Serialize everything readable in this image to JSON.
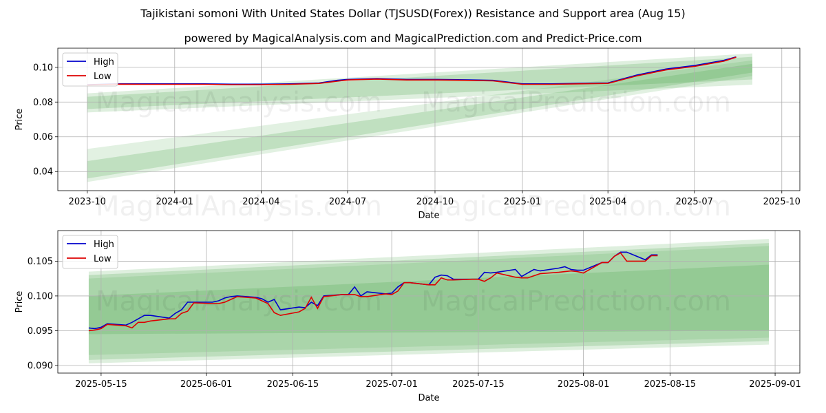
{
  "title": "Tajikistani somoni With United States Dollar (TJSUSD(Forex)) Resistance and Support area (Aug 15)",
  "subtitle": "powered by MagicalAnalysis.com and MagicalPrediction.com and Predict-Price.com",
  "watermarks": [
    "MagicalAnalysis.com",
    "MagicalPrediction.com"
  ],
  "colors": {
    "high": "#0000cc",
    "low": "#dd0000",
    "band": "#4aa64a",
    "grid": "#b0b0b0"
  },
  "chart_data": [
    {
      "type": "line",
      "xlabel": "Date",
      "ylabel": "Price",
      "x_ticks": [
        "2023-10",
        "2024-01",
        "2024-04",
        "2024-07",
        "2024-10",
        "2025-01",
        "2025-04",
        "2025-07",
        "2025-10"
      ],
      "y_ticks": [
        "0.04",
        "0.06",
        "0.08",
        "0.10"
      ],
      "xlim": [
        "2023-08-31",
        "2025-10-20"
      ],
      "ylim": [
        0.029,
        0.111
      ],
      "grid": true,
      "legend": "top-left",
      "legend_labels": [
        "High",
        "Low"
      ],
      "series": [
        {
          "name": "High",
          "x": [
            "2023-10-01",
            "2023-11-01",
            "2023-12-01",
            "2024-01-01",
            "2024-02-01",
            "2024-03-01",
            "2024-04-01",
            "2024-05-01",
            "2024-06-01",
            "2024-06-20",
            "2024-07-01",
            "2024-08-01",
            "2024-09-01",
            "2024-10-01",
            "2024-11-01",
            "2024-12-01",
            "2025-01-01",
            "2025-02-01",
            "2025-03-01",
            "2025-04-01",
            "2025-05-01",
            "2025-06-01",
            "2025-07-01",
            "2025-08-01",
            "2025-08-14"
          ],
          "y": [
            0.09,
            0.0905,
            0.0905,
            0.0905,
            0.0905,
            0.0903,
            0.0903,
            0.0905,
            0.091,
            0.0925,
            0.093,
            0.0935,
            0.093,
            0.093,
            0.0928,
            0.0925,
            0.0905,
            0.0905,
            0.0908,
            0.091,
            0.0955,
            0.099,
            0.101,
            0.104,
            0.106
          ]
        },
        {
          "name": "Low",
          "x": [
            "2023-10-01",
            "2023-11-01",
            "2023-12-01",
            "2024-01-01",
            "2024-02-01",
            "2024-03-01",
            "2024-04-01",
            "2024-05-01",
            "2024-06-01",
            "2024-06-20",
            "2024-07-01",
            "2024-08-01",
            "2024-09-01",
            "2024-10-01",
            "2024-11-01",
            "2024-12-01",
            "2025-01-01",
            "2025-02-01",
            "2025-03-01",
            "2025-04-01",
            "2025-05-01",
            "2025-06-01",
            "2025-07-01",
            "2025-08-01",
            "2025-08-14"
          ],
          "y": [
            0.0898,
            0.0903,
            0.0902,
            0.0902,
            0.0902,
            0.09,
            0.09,
            0.0902,
            0.0907,
            0.092,
            0.0927,
            0.0932,
            0.0927,
            0.0927,
            0.0925,
            0.0922,
            0.0902,
            0.0902,
            0.0905,
            0.0907,
            0.095,
            0.0985,
            0.1005,
            0.1035,
            0.1058
          ]
        }
      ],
      "bands": [
        {
          "x0": "2023-10-01",
          "x1": "2025-08-31",
          "lower": [
            0.074,
            0.09
          ],
          "upper": [
            0.085,
            0.108
          ]
        },
        {
          "x0": "2023-10-01",
          "x1": "2025-08-31",
          "lower": [
            0.076,
            0.093
          ],
          "upper": [
            0.083,
            0.106
          ]
        },
        {
          "x0": "2023-10-01",
          "x1": "2025-08-31",
          "lower": [
            0.034,
            0.095
          ],
          "upper": [
            0.053,
            0.104
          ]
        },
        {
          "x0": "2023-10-01",
          "x1": "2025-08-31",
          "lower": [
            0.036,
            0.097
          ],
          "upper": [
            0.046,
            0.102
          ]
        }
      ]
    },
    {
      "type": "line",
      "xlabel": "Date",
      "ylabel": "Price",
      "x_ticks": [
        "2025-05-15",
        "2025-06-01",
        "2025-06-15",
        "2025-07-01",
        "2025-07-15",
        "2025-08-01",
        "2025-08-15",
        "2025-09-01"
      ],
      "y_ticks": [
        "0.090",
        "0.095",
        "0.100",
        "0.105"
      ],
      "xlim": [
        "2025-05-08",
        "2025-09-05"
      ],
      "ylim": [
        0.0889,
        0.1094
      ],
      "grid": true,
      "legend": "top-left",
      "legend_labels": [
        "High",
        "Low"
      ],
      "series": [
        {
          "name": "High",
          "x": [
            "2025-05-13",
            "2025-05-14",
            "2025-05-15",
            "2025-05-16",
            "2025-05-19",
            "2025-05-20",
            "2025-05-21",
            "2025-05-22",
            "2025-05-23",
            "2025-05-26",
            "2025-05-27",
            "2025-05-28",
            "2025-05-29",
            "2025-05-30",
            "2025-06-02",
            "2025-06-03",
            "2025-06-04",
            "2025-06-05",
            "2025-06-06",
            "2025-06-09",
            "2025-06-10",
            "2025-06-11",
            "2025-06-12",
            "2025-06-13",
            "2025-06-16",
            "2025-06-17",
            "2025-06-18",
            "2025-06-19",
            "2025-06-20",
            "2025-06-23",
            "2025-06-24",
            "2025-06-25",
            "2025-06-26",
            "2025-06-27",
            "2025-06-30",
            "2025-07-01",
            "2025-07-02",
            "2025-07-03",
            "2025-07-04",
            "2025-07-07",
            "2025-07-08",
            "2025-07-09",
            "2025-07-10",
            "2025-07-11",
            "2025-07-14",
            "2025-07-15",
            "2025-07-16",
            "2025-07-17",
            "2025-07-18",
            "2025-07-21",
            "2025-07-22",
            "2025-07-23",
            "2025-07-24",
            "2025-07-25",
            "2025-07-28",
            "2025-07-29",
            "2025-07-30",
            "2025-07-31",
            "2025-08-01",
            "2025-08-04",
            "2025-08-05",
            "2025-08-06",
            "2025-08-07",
            "2025-08-08",
            "2025-08-11",
            "2025-08-12",
            "2025-08-13"
          ],
          "y": [
            0.0954,
            0.0953,
            0.0955,
            0.096,
            0.0958,
            0.0962,
            0.0967,
            0.0972,
            0.0972,
            0.0968,
            0.0975,
            0.098,
            0.0991,
            0.0991,
            0.0991,
            0.0993,
            0.0997,
            0.0999,
            0.1,
            0.0998,
            0.0996,
            0.0991,
            0.0995,
            0.098,
            0.0984,
            0.0983,
            0.0991,
            0.0986,
            0.1,
            0.1002,
            0.1002,
            0.1013,
            0.1,
            0.1006,
            0.1003,
            0.1004,
            0.1013,
            0.1019,
            0.1019,
            0.1016,
            0.1027,
            0.103,
            0.1029,
            0.1024,
            0.1024,
            0.1024,
            0.1034,
            0.1033,
            0.1034,
            0.1038,
            0.1028,
            0.1033,
            0.1038,
            0.1036,
            0.104,
            0.1042,
            0.1038,
            0.1037,
            0.1037,
            0.1048,
            0.1048,
            0.1057,
            0.1063,
            0.1063,
            0.1052,
            0.1059,
            0.1059
          ]
        },
        {
          "name": "Low",
          "x": [
            "2025-05-13",
            "2025-05-14",
            "2025-05-15",
            "2025-05-16",
            "2025-05-19",
            "2025-05-20",
            "2025-05-21",
            "2025-05-22",
            "2025-05-23",
            "2025-05-26",
            "2025-05-27",
            "2025-05-28",
            "2025-05-29",
            "2025-05-30",
            "2025-06-02",
            "2025-06-03",
            "2025-06-04",
            "2025-06-05",
            "2025-06-06",
            "2025-06-09",
            "2025-06-10",
            "2025-06-11",
            "2025-06-12",
            "2025-06-13",
            "2025-06-16",
            "2025-06-17",
            "2025-06-18",
            "2025-06-19",
            "2025-06-20",
            "2025-06-23",
            "2025-06-24",
            "2025-06-25",
            "2025-06-26",
            "2025-06-27",
            "2025-06-30",
            "2025-07-01",
            "2025-07-02",
            "2025-07-03",
            "2025-07-04",
            "2025-07-07",
            "2025-07-08",
            "2025-07-09",
            "2025-07-10",
            "2025-07-11",
            "2025-07-14",
            "2025-07-15",
            "2025-07-16",
            "2025-07-17",
            "2025-07-18",
            "2025-07-21",
            "2025-07-22",
            "2025-07-23",
            "2025-07-24",
            "2025-07-25",
            "2025-07-28",
            "2025-07-29",
            "2025-07-30",
            "2025-07-31",
            "2025-08-01",
            "2025-08-04",
            "2025-08-05",
            "2025-08-06",
            "2025-08-07",
            "2025-08-08",
            "2025-08-11",
            "2025-08-12",
            "2025-08-13"
          ],
          "y": [
            0.095,
            0.0951,
            0.0953,
            0.0959,
            0.0957,
            0.0954,
            0.0962,
            0.0962,
            0.0964,
            0.0967,
            0.0967,
            0.0975,
            0.0978,
            0.099,
            0.0989,
            0.0989,
            0.0991,
            0.0995,
            0.0999,
            0.0997,
            0.0993,
            0.0989,
            0.0976,
            0.0972,
            0.0977,
            0.0982,
            0.0998,
            0.0982,
            0.0999,
            0.1002,
            0.1002,
            0.1002,
            0.0999,
            0.0999,
            0.1003,
            0.1002,
            0.1007,
            0.1019,
            0.1019,
            0.1016,
            0.1016,
            0.1026,
            0.1023,
            0.1023,
            0.1024,
            0.1024,
            0.1021,
            0.1026,
            0.1033,
            0.1027,
            0.1026,
            0.1026,
            0.1029,
            0.1032,
            0.1034,
            0.1035,
            0.1036,
            0.1035,
            0.1033,
            0.1048,
            0.1048,
            0.1057,
            0.1062,
            0.105,
            0.105,
            0.1058,
            0.1058
          ]
        }
      ],
      "bands": [
        {
          "x0": "2025-05-13",
          "x1": "2025-08-31",
          "lower": [
            0.0903,
            0.093
          ],
          "upper": [
            0.1035,
            0.1082
          ]
        },
        {
          "x0": "2025-05-13",
          "x1": "2025-08-31",
          "lower": [
            0.0908,
            0.0935
          ],
          "upper": [
            0.103,
            0.1076
          ]
        },
        {
          "x0": "2025-05-13",
          "x1": "2025-08-31",
          "lower": [
            0.0915,
            0.094
          ],
          "upper": [
            0.1025,
            0.1072
          ]
        },
        {
          "x0": "2025-05-13",
          "x1": "2025-08-31",
          "lower": [
            0.0945,
            0.095
          ],
          "upper": [
            0.1,
            0.1045
          ]
        }
      ]
    }
  ]
}
